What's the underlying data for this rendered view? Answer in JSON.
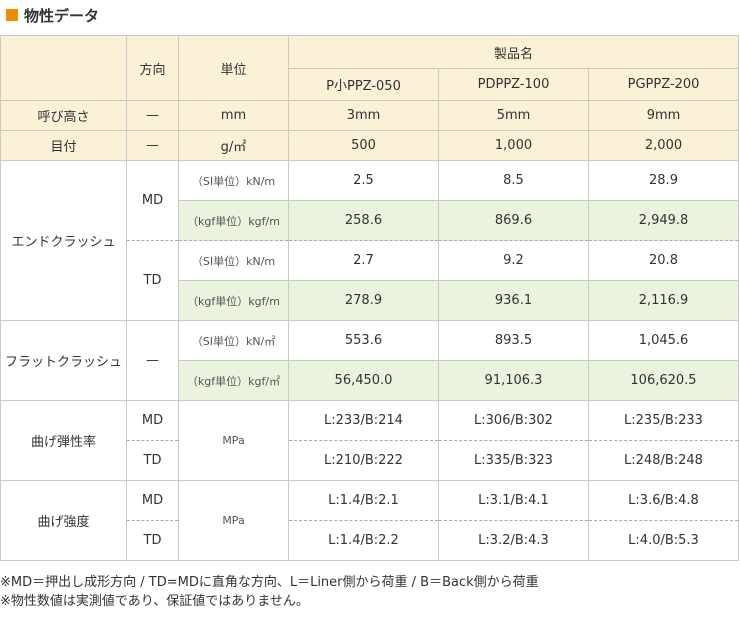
{
  "title": "物性データ",
  "header": {
    "direction": "方向",
    "unit": "単位",
    "product_name": "製品名",
    "products": [
      "P小PPZ-050",
      "PDPPZ-100",
      "PGPPZ-200"
    ]
  },
  "rows": {
    "height": {
      "label": "呼び高さ",
      "direction": "—",
      "unit": "mm",
      "values": [
        "3mm",
        "5mm",
        "9mm"
      ]
    },
    "mesh": {
      "label": "目付",
      "direction": "—",
      "unit": "g/㎡",
      "values": [
        "500",
        "1,000",
        "2,000"
      ]
    },
    "end_crush": {
      "label": "エンドクラッシュ",
      "md": {
        "direction": "MD",
        "si": {
          "unit": "（SI単位）kN/m",
          "values": [
            "2.5",
            "8.5",
            "28.9"
          ]
        },
        "kgf": {
          "unit": "（kgf単位）kgf/m",
          "values": [
            "258.6",
            "869.6",
            "2,949.8"
          ]
        }
      },
      "td": {
        "direction": "TD",
        "si": {
          "unit": "（SI単位）kN/m",
          "values": [
            "2.7",
            "9.2",
            "20.8"
          ]
        },
        "kgf": {
          "unit": "（kgf単位）kgf/m",
          "values": [
            "278.9",
            "936.1",
            "2,116.9"
          ]
        }
      }
    },
    "flat_crush": {
      "label": "フラットクラッシュ",
      "direction": "—",
      "si": {
        "unit": "（SI単位）kN/㎡",
        "values": [
          "553.6",
          "893.5",
          "1,045.6"
        ]
      },
      "kgf": {
        "unit": "（kgf単位）kgf/㎡",
        "values": [
          "56,450.0",
          "91,106.3",
          "106,620.5"
        ]
      }
    },
    "flex_modulus": {
      "label": "曲げ弾性率",
      "unit": "MPa",
      "md": {
        "direction": "MD",
        "values": [
          "L:233/B:214",
          "L:306/B:302",
          "L:235/B:233"
        ]
      },
      "td": {
        "direction": "TD",
        "values": [
          "L:210/B:222",
          "L:335/B:323",
          "L:248/B:248"
        ]
      }
    },
    "flex_strength": {
      "label": "曲げ強度",
      "unit": "MPa",
      "md": {
        "direction": "MD",
        "values": [
          "L:1.4/B:2.1",
          "L:3.1/B:4.1",
          "L:3.6/B:4.8"
        ]
      },
      "td": {
        "direction": "TD",
        "values": [
          "L:1.4/B:2.2",
          "L:3.2/B:4.3",
          "L:4.0/B:5.3"
        ]
      }
    }
  },
  "notes": [
    "※MD＝押出し成形方向 / TD=MDに直角な方向、L＝Liner側から荷重 / B＝Back側から荷重",
    "※物性数値は実測値であり、保証値ではありません。"
  ],
  "colors": {
    "accent_square": "#f08c00",
    "header_bg": "#fbf1d6",
    "green_bg": "#e9f3de",
    "border": "#c9c9c9"
  }
}
